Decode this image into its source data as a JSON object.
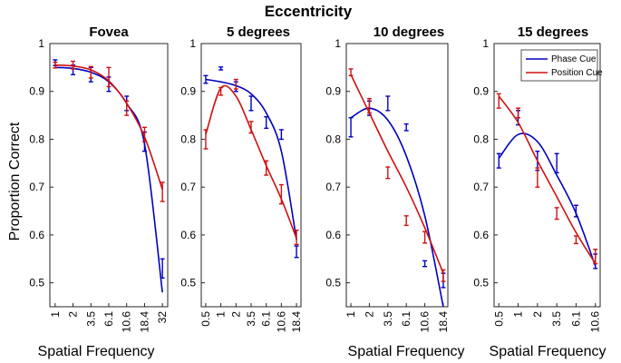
{
  "suptitle": "Eccentricity",
  "chart_data": [
    {
      "type": "line",
      "title": "Fovea",
      "xlabel": "Spatial Frequency",
      "ylabel": "Proportion Correct",
      "ylim": [
        0.45,
        1.0
      ],
      "yticks": [
        0.5,
        0.6,
        0.7,
        0.8,
        0.9,
        1
      ],
      "ytick_labels": [
        "0.5",
        "0.6",
        "0.7",
        "0.8",
        "0.9",
        "1"
      ],
      "xticks": [
        "1",
        "2",
        "3.5",
        "6.1",
        "10.6",
        "18.4",
        "32"
      ],
      "series": [
        {
          "name": "Phase Cue",
          "color": "#0000c0",
          "points": [
            {
              "y": 0.96,
              "err": 0.006
            },
            {
              "y": 0.945,
              "err": 0.01
            },
            {
              "y": 0.935,
              "err": 0.015
            },
            {
              "y": 0.915,
              "err": 0.015
            },
            {
              "y": 0.875,
              "err": 0.015
            },
            {
              "y": 0.795,
              "err": 0.02
            },
            {
              "y": 0.53,
              "err": 0.02
            }
          ],
          "fit": [
            0.95,
            0.948,
            0.94,
            0.92,
            0.875,
            0.79,
            0.48
          ]
        },
        {
          "name": "Position Cue",
          "color": "#d01010",
          "points": [
            {
              "y": 0.955,
              "err": 0.006
            },
            {
              "y": 0.955,
              "err": 0.008
            },
            {
              "y": 0.94,
              "err": 0.012
            },
            {
              "y": 0.93,
              "err": 0.02
            },
            {
              "y": 0.865,
              "err": 0.015
            },
            {
              "y": 0.81,
              "err": 0.015
            },
            {
              "y": 0.69,
              "err": 0.02
            }
          ],
          "fit": [
            0.955,
            0.953,
            0.945,
            0.922,
            0.875,
            0.805,
            0.695
          ]
        }
      ]
    },
    {
      "type": "line",
      "title": "5 degrees",
      "xlabel": "",
      "ylabel": "",
      "ylim": [
        0.45,
        1.0
      ],
      "yticks": [
        0.5,
        0.6,
        0.7,
        0.8,
        0.9,
        1
      ],
      "ytick_labels": [
        "0.5",
        "0.6",
        "0.7",
        "0.8",
        "0.9",
        "1"
      ],
      "xticks": [
        "0.5",
        "1",
        "2",
        "3.5",
        "6.1",
        "10.6",
        "18.4"
      ],
      "series": [
        {
          "name": "Phase Cue",
          "color": "#0000c0",
          "points": [
            {
              "y": 0.925,
              "err": 0.008
            },
            {
              "y": 0.948,
              "err": 0.003
            },
            {
              "y": 0.91,
              "err": 0.01
            },
            {
              "y": 0.875,
              "err": 0.015
            },
            {
              "y": 0.835,
              "err": 0.012
            },
            {
              "y": 0.81,
              "err": 0.01
            },
            {
              "y": 0.565,
              "err": 0.012
            }
          ],
          "fit": [
            0.925,
            0.92,
            0.912,
            0.895,
            0.855,
            0.775,
            0.59
          ]
        },
        {
          "name": "Position Cue",
          "color": "#d01010",
          "points": [
            {
              "y": 0.8,
              "err": 0.02
            },
            {
              "y": 0.9,
              "err": 0.008
            },
            {
              "y": 0.915,
              "err": 0.01
            },
            {
              "y": 0.825,
              "err": 0.012
            },
            {
              "y": 0.74,
              "err": 0.015
            },
            {
              "y": 0.685,
              "err": 0.02
            },
            {
              "y": 0.595,
              "err": 0.015
            }
          ],
          "fit": [
            0.81,
            0.907,
            0.89,
            0.82,
            0.745,
            0.675,
            0.593
          ]
        }
      ]
    },
    {
      "type": "line",
      "title": "10 degrees",
      "xlabel": "Spatial Frequency",
      "ylabel": "",
      "ylim": [
        0.45,
        1.0
      ],
      "yticks": [
        0.5,
        0.6,
        0.7,
        0.8,
        0.9,
        1
      ],
      "ytick_labels": [
        "0.5",
        "0.6",
        "0.7",
        "0.8",
        "0.9",
        "1"
      ],
      "xticks": [
        "1",
        "2",
        "3.5",
        "6.1",
        "10.6",
        "18.4"
      ],
      "series": [
        {
          "name": "Phase Cue",
          "color": "#0000c0",
          "points": [
            {
              "y": 0.825,
              "err": 0.02
            },
            {
              "y": 0.865,
              "err": 0.015
            },
            {
              "y": 0.875,
              "err": 0.015
            },
            {
              "y": 0.825,
              "err": 0.007
            },
            {
              "y": 0.54,
              "err": 0.006
            },
            {
              "y": 0.505,
              "err": 0.015
            }
          ],
          "fit": [
            0.845,
            0.865,
            0.84,
            0.765,
            0.64,
            0.45
          ]
        },
        {
          "name": "Position Cue",
          "color": "#d01010",
          "points": [
            {
              "y": 0.94,
              "err": 0.007
            },
            {
              "y": 0.87,
              "err": 0.015
            },
            {
              "y": 0.73,
              "err": 0.012
            },
            {
              "y": 0.63,
              "err": 0.01
            },
            {
              "y": 0.595,
              "err": 0.012
            },
            {
              "y": 0.515,
              "err": 0.012
            }
          ],
          "fit": [
            0.935,
            0.855,
            0.775,
            0.7,
            0.615,
            0.52
          ]
        }
      ]
    },
    {
      "type": "line",
      "title": "15 degrees",
      "xlabel": "Spatial Frequency",
      "ylabel": "",
      "ylim": [
        0.45,
        1.0
      ],
      "yticks": [
        0.5,
        0.6,
        0.7,
        0.8,
        0.9,
        1
      ],
      "ytick_labels": [
        "0.5",
        "0.6",
        "0.7",
        "0.8",
        "0.9",
        "1"
      ],
      "xticks": [
        "0.5",
        "1",
        "2",
        "3.5",
        "6.1",
        "10.6"
      ],
      "legend_location": "top-right",
      "series": [
        {
          "name": "Phase Cue",
          "color": "#0000c0",
          "points": [
            {
              "y": 0.755,
              "err": 0.015
            },
            {
              "y": 0.845,
              "err": 0.015
            },
            {
              "y": 0.755,
              "err": 0.02
            },
            {
              "y": 0.75,
              "err": 0.02
            },
            {
              "y": 0.65,
              "err": 0.012
            },
            {
              "y": 0.545,
              "err": 0.015
            }
          ],
          "fit": [
            0.76,
            0.81,
            0.795,
            0.725,
            0.645,
            0.535
          ]
        },
        {
          "name": "Position Cue",
          "color": "#d01010",
          "points": [
            {
              "y": 0.88,
              "err": 0.015
            },
            {
              "y": 0.855,
              "err": 0.01
            },
            {
              "y": 0.72,
              "err": 0.02
            },
            {
              "y": 0.645,
              "err": 0.012
            },
            {
              "y": 0.59,
              "err": 0.008
            },
            {
              "y": 0.555,
              "err": 0.015
            }
          ],
          "fit": [
            0.89,
            0.835,
            0.755,
            0.68,
            0.605,
            0.54
          ]
        }
      ]
    }
  ]
}
